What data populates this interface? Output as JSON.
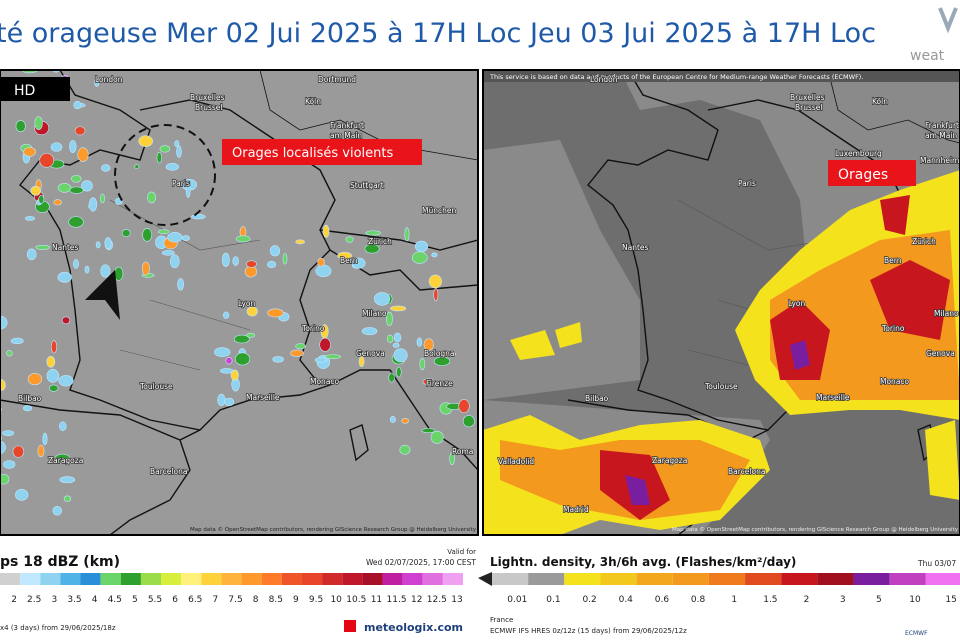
{
  "header": {
    "title_left": "té orageuse Mer 02 Jui 2025 à 17H Loc",
    "title_right": "Jeu 03 Jui 2025 à 17H Loc",
    "logo": "weat"
  },
  "left_map": {
    "badge": "HD",
    "annotation": "Orages localisés violents",
    "cities": [
      "London",
      "Dortmund",
      "Bruxelles",
      "Brussel",
      "Köln",
      "Frankfurt",
      "am Main",
      "Paris",
      "Stuttgart",
      "München",
      "Nantes",
      "Zürich",
      "Bern",
      "Lyon",
      "Torino",
      "Milano",
      "Genova",
      "Bologna",
      "Monaco",
      "Marseille",
      "Toulouse",
      "Bilbao",
      "Zaragoza",
      "Barcelona",
      "Firenze",
      "Roma"
    ],
    "attribution": "Map data © OpenStreetMap contributors, rendering GIScience Research Group @ Heidelberg University"
  },
  "right_map": {
    "notice": "This service is based on data and products of the European Centre for Medium-range Weather Forecasts (ECMWF).",
    "annotation": "Orages",
    "cities": [
      "London",
      "Bruxelles",
      "Brussel",
      "Köln",
      "Frankfurt",
      "am Main",
      "Luxembourg",
      "Mannheim",
      "Paris",
      "Nantes",
      "Zürich",
      "Bern",
      "Lyon",
      "Torino",
      "Milano",
      "Genova",
      "Monaco",
      "Marseille",
      "Toulouse",
      "Bilbao",
      "Valladolid",
      "Zaragoza",
      "Madrid",
      "Barcelona"
    ],
    "attribution": "Map data © OpenStreetMap contributors, rendering GIScience Research Group @ Heidelberg University"
  },
  "left_legend": {
    "title": "ps 18 dBZ (km)",
    "valid_label": "Valid for",
    "valid_time": "Wed 02/07/2025, 17:00 CEST",
    "ticks": [
      2,
      2.5,
      3,
      3.5,
      4,
      4.5,
      5,
      5.5,
      6,
      6.5,
      7,
      7.5,
      8,
      8.5,
      9,
      9.5,
      10,
      10.5,
      11,
      11.5,
      12,
      12.5,
      13
    ],
    "run": "x4 (3 days) from 29/06/2025/18z",
    "brand": "meteologix.com"
  },
  "right_legend": {
    "title": "Lightn. density, 3h/6h avg. (Flashes/km²/day)",
    "valid_time": "Thu 03/07",
    "ticks": [
      0.01,
      0.1,
      0.2,
      0.4,
      0.6,
      0.8,
      1,
      1.5,
      2,
      3,
      5,
      10,
      15
    ],
    "country": "France",
    "run": "ECMWF IFS HRES 0z/12z (15 days) from 29/06/2025/12z",
    "brand": "ECMWF"
  }
}
